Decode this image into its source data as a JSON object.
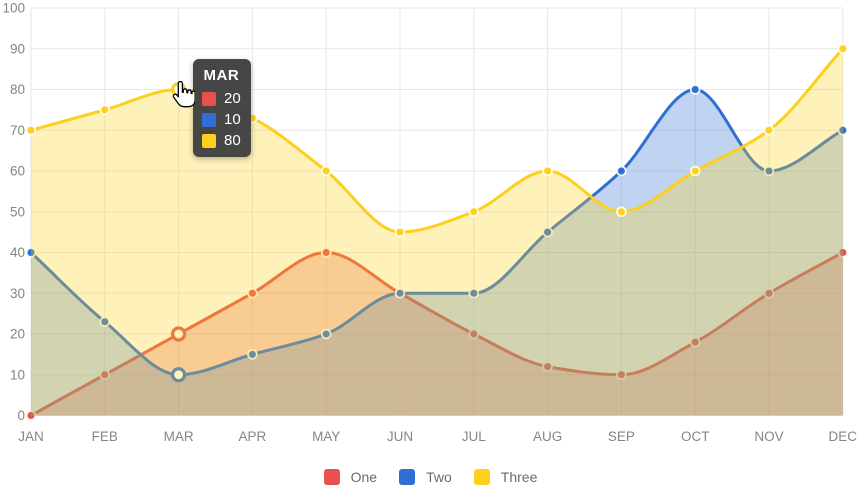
{
  "chart_data": {
    "type": "area",
    "title": "",
    "xlabel": "",
    "ylabel": "",
    "categories": [
      "JAN",
      "FEB",
      "MAR",
      "APR",
      "MAY",
      "JUN",
      "JUL",
      "AUG",
      "SEP",
      "OCT",
      "NOV",
      "DEC"
    ],
    "series": [
      {
        "name": "One",
        "color": "#E8514B",
        "values": [
          0,
          10,
          20,
          30,
          40,
          30,
          20,
          12,
          10,
          18,
          30,
          40
        ]
      },
      {
        "name": "Two",
        "color": "#2F6FD3",
        "values": [
          40,
          23,
          10,
          15,
          20,
          30,
          30,
          45,
          60,
          80,
          60,
          70
        ]
      },
      {
        "name": "Three",
        "color": "#FCD01C",
        "values": [
          70,
          75,
          80,
          73,
          60,
          45,
          50,
          60,
          50,
          60,
          70,
          90
        ]
      }
    ],
    "ylim": [
      0,
      100
    ],
    "ytick_step": 10,
    "yticks": [
      0,
      10,
      20,
      30,
      40,
      50,
      60,
      70,
      80,
      90,
      100
    ],
    "grid": true,
    "curve": "monotone",
    "fill_opacity": 0.3,
    "legend_position": "bottom"
  },
  "tooltip": {
    "title": "MAR",
    "hover_index": 2,
    "rows": [
      {
        "series": "One",
        "color": "#E8514B",
        "value": "20"
      },
      {
        "series": "Two",
        "color": "#2F6FD3",
        "value": "10"
      },
      {
        "series": "Three",
        "color": "#FCD01C",
        "value": "80"
      }
    ]
  },
  "legend": {
    "items": [
      {
        "label": "One",
        "color": "#E8514B"
      },
      {
        "label": "Two",
        "color": "#2F6FD3"
      },
      {
        "label": "Three",
        "color": "#FCD01C"
      }
    ]
  },
  "colors": {
    "grid": "#E7E7E7",
    "axis_text": "#858585",
    "tooltip_bg": "#404040",
    "background": "#FFFFFF",
    "point_border": "#FFFFFF"
  }
}
